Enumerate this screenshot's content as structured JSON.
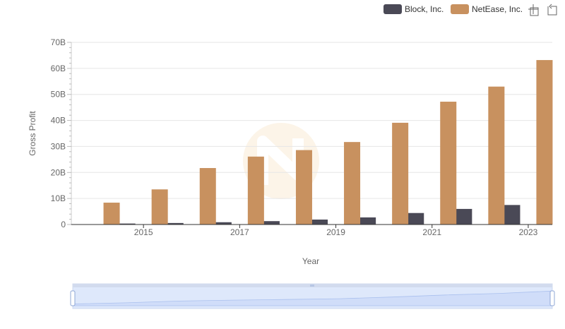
{
  "chart_data": {
    "type": "bar",
    "x": [
      2014,
      2015,
      2016,
      2017,
      2018,
      2019,
      2020,
      2021,
      2022,
      2023
    ],
    "xtick_labels": [
      "2015",
      "2017",
      "2019",
      "2021",
      "2023"
    ],
    "xtick_values": [
      2015,
      2017,
      2019,
      2021,
      2023
    ],
    "series": [
      {
        "name": "Block, Inc.",
        "color": "#4a4956",
        "values": [
          0.1,
          0.37,
          0.58,
          0.88,
          1.3,
          1.9,
          2.73,
          4.42,
          5.99,
          7.5
        ]
      },
      {
        "name": "NetEase, Inc.",
        "color": "#c8915f",
        "values": [
          8.4,
          13.5,
          21.7,
          26.1,
          28.6,
          31.7,
          39.1,
          47.2,
          53.0,
          63.2
        ]
      }
    ],
    "ylabel": "Gross Profit",
    "xlabel": "Year",
    "ylim": [
      0,
      70
    ],
    "yticks": [
      0,
      10,
      20,
      30,
      40,
      50,
      60,
      70
    ],
    "ytick_labels": [
      "0",
      "10B",
      "20B",
      "30B",
      "40B",
      "50B",
      "60B",
      "70B"
    ],
    "grid": true,
    "legend": "top-right"
  },
  "toolbar": {
    "zoom_icon": "zoom-icon",
    "reset_icon": "reset-zoom-icon"
  },
  "data_zoom": {
    "start": 0,
    "end": 100
  }
}
